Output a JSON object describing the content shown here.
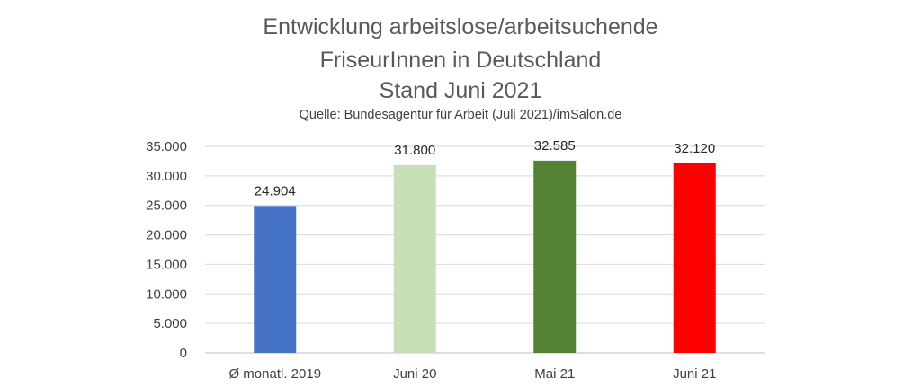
{
  "chart_data": {
    "type": "bar",
    "title_lines": [
      "Entwicklung arbeitslose/arbeitsuchende",
      "FriseurInnen in Deutschland",
      "Stand Juni 2021"
    ],
    "subtitle": "Quelle: Bundesagentur für Arbeit (Juli 2021)/imSalon.de",
    "categories": [
      "Ø monatl. 2019",
      "Juni 20",
      "Mai 21",
      "Juni 21"
    ],
    "values": [
      24904,
      31800,
      32585,
      32120
    ],
    "data_labels": [
      "24.904",
      "31.800",
      "32.585",
      "32.120"
    ],
    "bar_colors": [
      "#4472c4",
      "#c5e0b4",
      "#548235",
      "#ff0000"
    ],
    "y_ticks": [
      0,
      5000,
      10000,
      15000,
      20000,
      25000,
      30000,
      35000
    ],
    "y_tick_labels": [
      "0",
      "5.000",
      "10.000",
      "15.000",
      "20.000",
      "25.000",
      "30.000",
      "35.000"
    ],
    "ylim": [
      0,
      35000
    ],
    "grid": true,
    "legend": "none",
    "xlabel": "",
    "ylabel": ""
  }
}
